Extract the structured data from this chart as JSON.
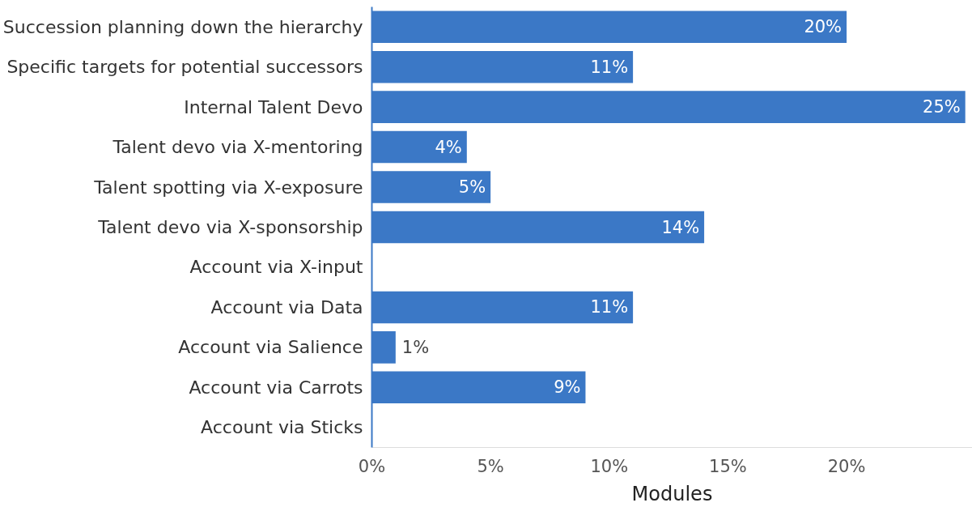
{
  "chart_data": {
    "type": "bar",
    "orientation": "horizontal",
    "xlabel": "Modules",
    "categories": [
      "Succession planning down the hierarchy",
      "Specific targets for potential successors",
      "Internal Talent Devo",
      "Talent devo via X-mentoring",
      "Talent spotting via X-exposure",
      "Talent devo via X-sponsorship",
      "Account via X-input",
      "Account via Data",
      "Account via Salience",
      "Account via Carrots",
      "Account via Sticks"
    ],
    "values": [
      20,
      11,
      25,
      4,
      5,
      14,
      null,
      11,
      1,
      9,
      null
    ],
    "color": "#3b78c6",
    "xlim": [
      0,
      25.3
    ],
    "xticks": [
      {
        "value": 0,
        "label": "0%"
      },
      {
        "value": 5,
        "label": "5%"
      },
      {
        "value": 10,
        "label": "10%"
      },
      {
        "value": 15,
        "label": "15%"
      },
      {
        "value": 20,
        "label": "20%"
      }
    ],
    "value_labels": [
      "20%",
      "11%",
      "25%",
      "4%",
      "5%",
      "14%",
      null,
      "11%",
      "1%",
      "9%",
      null
    ],
    "grid": false
  }
}
